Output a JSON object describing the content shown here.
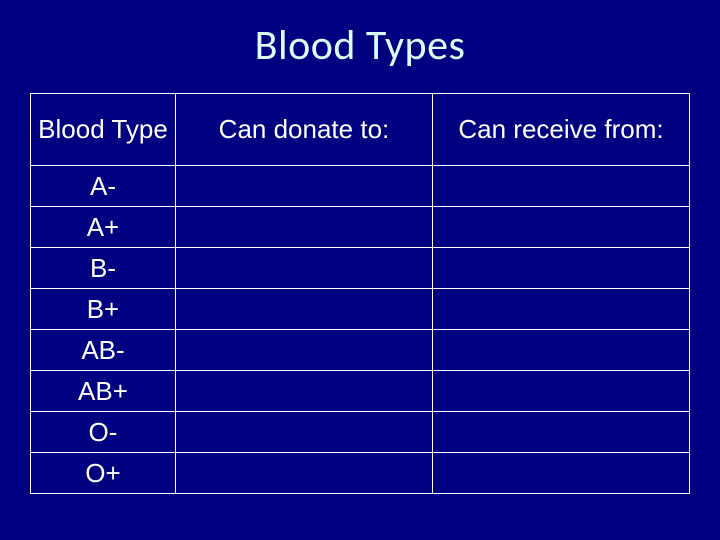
{
  "title": "Blood Types",
  "background_color": "#000080",
  "title_color": "#d9fef7",
  "border_color": "#ffffff",
  "text_color": "#ffffff",
  "title_fontsize": 42,
  "header_fontsize": 26,
  "cell_fontsize": 26,
  "columns": [
    {
      "key": "blood_type",
      "label": "Blood Type",
      "width_pct": 22
    },
    {
      "key": "donate_to",
      "label": "Can donate to:",
      "width_pct": 39
    },
    {
      "key": "receive_from",
      "label": "Can receive from:",
      "width_pct": 39
    }
  ],
  "rows": [
    {
      "blood_type": "A-",
      "donate_to": "",
      "receive_from": ""
    },
    {
      "blood_type": "A+",
      "donate_to": "",
      "receive_from": ""
    },
    {
      "blood_type": "B-",
      "donate_to": "",
      "receive_from": ""
    },
    {
      "blood_type": "B+",
      "donate_to": "",
      "receive_from": ""
    },
    {
      "blood_type": "AB-",
      "donate_to": "",
      "receive_from": ""
    },
    {
      "blood_type": "AB+",
      "donate_to": "",
      "receive_from": ""
    },
    {
      "blood_type": "O-",
      "donate_to": "",
      "receive_from": ""
    },
    {
      "blood_type": "O+",
      "donate_to": "",
      "receive_from": ""
    }
  ]
}
